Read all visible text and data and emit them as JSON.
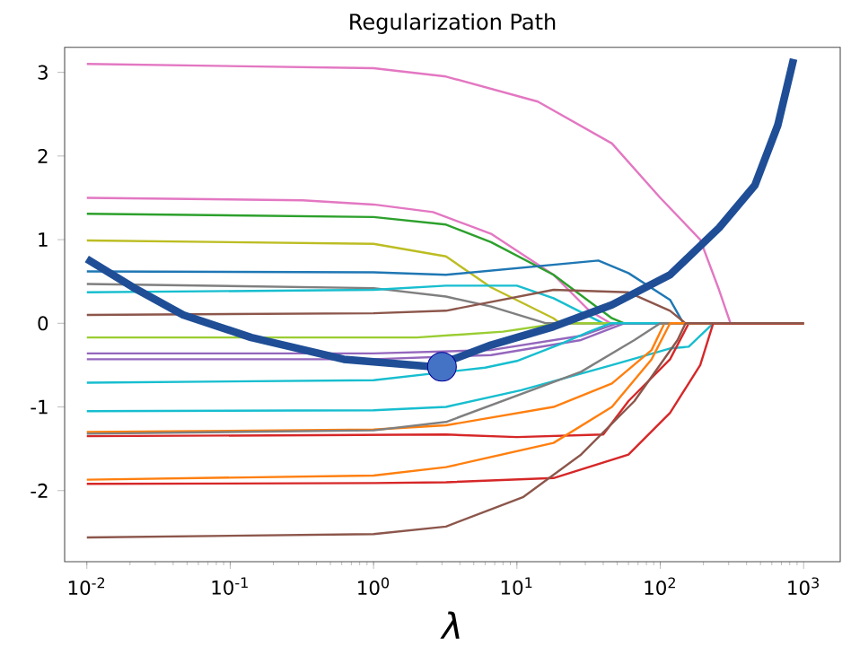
{
  "chart_data": {
    "type": "line",
    "title": "Regularization Path",
    "xlabel": "λ",
    "log": "x",
    "grid": false,
    "legend": false,
    "marker": "none",
    "line_style": "solid",
    "xlim": [
      0.007,
      1800
    ],
    "ylim": [
      -2.85,
      3.3
    ],
    "xticks": [
      {
        "value": 0.01,
        "label": "10$^{-2}$"
      },
      {
        "value": 0.1,
        "label": "10$^{-1}$"
      },
      {
        "value": 1,
        "label": "10$^{0}$"
      },
      {
        "value": 10,
        "label": "10$^{1}$"
      },
      {
        "value": 100,
        "label": "10$^{2}$"
      },
      {
        "value": 1000,
        "label": "10$^{3}$"
      }
    ],
    "yticks": [
      -2,
      -1,
      0,
      1,
      2,
      3
    ],
    "series": [
      {
        "color": "#e377c2",
        "x": [
          0.01,
          1,
          3.2,
          14,
          46,
          100,
          190,
          257,
          309,
          1000
        ],
        "values": [
          3.1,
          3.05,
          2.95,
          2.65,
          2.15,
          1.5,
          1.0,
          0.4,
          0,
          0
        ]
      },
      {
        "color": "#e377c2",
        "x": [
          0.01,
          0.32,
          1,
          2.6,
          6.6,
          18,
          32,
          45,
          1000
        ],
        "values": [
          1.5,
          1.47,
          1.42,
          1.33,
          1.07,
          0.58,
          0.15,
          0,
          0
        ]
      },
      {
        "color": "#2ca02c",
        "x": [
          0.01,
          1,
          3.2,
          6.6,
          18,
          46,
          56,
          1000
        ],
        "values": [
          1.31,
          1.27,
          1.18,
          0.97,
          0.58,
          0.06,
          0,
          0
        ]
      },
      {
        "color": "#bcbd22",
        "x": [
          0.01,
          1,
          3.2,
          6.6,
          18,
          20,
          1000
        ],
        "values": [
          0.99,
          0.95,
          0.8,
          0.43,
          0.06,
          0,
          0
        ]
      },
      {
        "color": "#1f77b4",
        "x": [
          0.01,
          1,
          3.2,
          37,
          60,
          117,
          145,
          1000
        ],
        "values": [
          0.62,
          0.61,
          0.58,
          0.75,
          0.6,
          0.28,
          0,
          0
        ]
      },
      {
        "color": "#7f7f7f",
        "x": [
          0.01,
          1,
          3.2,
          6.6,
          16,
          1000
        ],
        "values": [
          0.47,
          0.42,
          0.32,
          0.2,
          0,
          0
        ]
      },
      {
        "color": "#17becf",
        "x": [
          0.01,
          1,
          3.2,
          10,
          18,
          40,
          1000
        ],
        "values": [
          0.37,
          0.4,
          0.45,
          0.45,
          0.3,
          0,
          0
        ]
      },
      {
        "color": "#8c564b",
        "x": [
          0.01,
          1,
          3.2,
          18,
          60,
          117,
          150,
          1000
        ],
        "values": [
          0.1,
          0.12,
          0.15,
          0.4,
          0.37,
          0.15,
          0,
          0
        ]
      },
      {
        "color": "#9acd32",
        "x": [
          0.01,
          2,
          8,
          20,
          1000
        ],
        "values": [
          -0.17,
          -0.17,
          -0.1,
          0,
          0
        ]
      },
      {
        "color": "#9467bd",
        "x": [
          0.01,
          1,
          6.6,
          28,
          50,
          1000
        ],
        "values": [
          -0.36,
          -0.36,
          -0.32,
          -0.15,
          0,
          0
        ]
      },
      {
        "color": "#9467bd",
        "x": [
          0.01,
          1,
          6.6,
          28,
          56,
          1000
        ],
        "values": [
          -0.43,
          -0.43,
          -0.38,
          -0.2,
          0,
          0
        ]
      },
      {
        "color": "#17becf",
        "x": [
          0.01,
          1,
          6,
          10,
          20,
          32,
          45,
          1000
        ],
        "values": [
          -0.71,
          -0.68,
          -0.53,
          -0.45,
          -0.25,
          -0.1,
          0,
          0
        ]
      },
      {
        "color": "#17becf",
        "x": [
          0.01,
          1,
          3.2,
          10.7,
          46,
          117,
          158,
          234,
          1000
        ],
        "values": [
          -1.05,
          -1.04,
          -1.0,
          -0.8,
          -0.5,
          -0.3,
          -0.28,
          0,
          0
        ]
      },
      {
        "color": "#ff7f0e",
        "x": [
          0.01,
          1,
          3.2,
          18,
          46,
          87,
          107,
          1000
        ],
        "values": [
          -1.3,
          -1.27,
          -1.22,
          -1.0,
          -0.72,
          -0.32,
          0,
          0
        ]
      },
      {
        "color": "#d62728",
        "x": [
          0.01,
          3.2,
          10,
          40,
          60,
          117,
          158,
          1000
        ],
        "values": [
          -1.35,
          -1.33,
          -1.36,
          -1.33,
          -0.93,
          -0.43,
          0,
          0
        ]
      },
      {
        "color": "#7f7f7f",
        "x": [
          0.01,
          1,
          3.2,
          28,
          66,
          100,
          1000
        ],
        "values": [
          -1.32,
          -1.28,
          -1.18,
          -0.58,
          -0.2,
          0,
          0
        ]
      },
      {
        "color": "#ff7f0e",
        "x": [
          0.01,
          1,
          3.2,
          18,
          46,
          87,
          117,
          1000
        ],
        "values": [
          -1.87,
          -1.82,
          -1.72,
          -1.43,
          -1.0,
          -0.43,
          0,
          0
        ]
      },
      {
        "color": "#d62728",
        "x": [
          0.01,
          1,
          3.2,
          18,
          60,
          117,
          190,
          234,
          1000
        ],
        "values": [
          -1.92,
          -1.91,
          -1.9,
          -1.85,
          -1.57,
          -1.07,
          -0.5,
          0,
          0
        ]
      },
      {
        "color": "#8c564b",
        "x": [
          0.01,
          1,
          3.2,
          11,
          28,
          66,
          132,
          150,
          1000
        ],
        "values": [
          -2.56,
          -2.52,
          -2.43,
          -2.08,
          -1.57,
          -0.93,
          -0.2,
          0,
          0
        ]
      },
      {
        "color": "#1f4e96",
        "x": [
          0.01,
          0.021,
          0.047,
          0.14,
          0.62,
          2.6,
          6.6,
          18,
          46,
          117,
          257,
          457,
          661,
          851
        ],
        "values": [
          0.77,
          0.43,
          0.1,
          -0.17,
          -0.43,
          -0.52,
          -0.26,
          -0.04,
          0.22,
          0.58,
          1.14,
          1.65,
          2.37,
          3.16
        ]
      },
      {
        "type": "scatter",
        "color": "#4472c4",
        "marker": "circle",
        "x": [
          3
        ],
        "values": [
          -0.52
        ]
      }
    ]
  }
}
